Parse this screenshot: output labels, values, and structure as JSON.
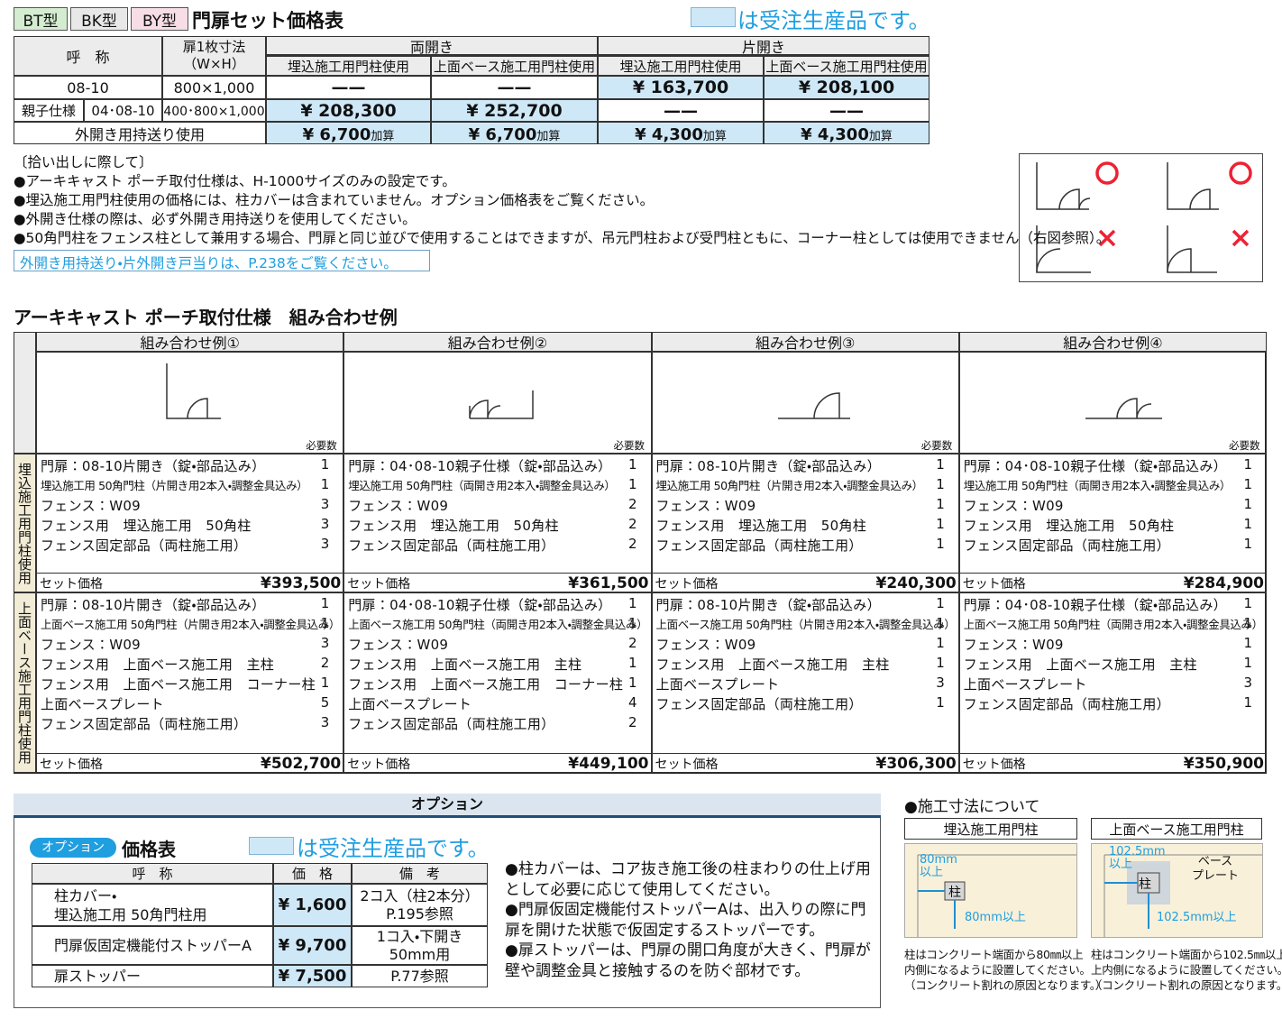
{
  "header": {
    "tags": [
      {
        "text": "BT型",
        "color": "#d4ecd0"
      },
      {
        "text": "BK型",
        "color": "#e8e8e8"
      },
      {
        "text": "BY型",
        "color": "#f6dde6"
      }
    ],
    "title": "門扉セット価格表",
    "legend_note": "は受注生産品です。"
  },
  "price_table": {
    "head_name": "呼　称",
    "head_size": [
      "扉1枚寸法",
      "（W×H）"
    ],
    "groups": [
      "両開き",
      "片開き"
    ],
    "subheads": [
      "埋込施工用門柱使用",
      "上面ベース施工用門柱使用",
      "埋込施工用門柱使用",
      "上面ベース施工用門柱使用"
    ],
    "row1": {
      "name": "08-10",
      "size": "800×1,000",
      "cells": [
        {
          "text": "——",
          "shaded": false
        },
        {
          "text": "——",
          "shaded": false
        },
        {
          "text": "¥ 163,700",
          "shaded": true
        },
        {
          "text": "¥ 208,100",
          "shaded": true
        }
      ]
    },
    "row2": {
      "name": "親子仕様",
      "code": "04･08-10",
      "size": "400･800×1,000",
      "cells": [
        {
          "text": "¥ 208,300",
          "shaded": true
        },
        {
          "text": "¥ 252,700",
          "shaded": true
        },
        {
          "text": "——",
          "shaded": false
        },
        {
          "text": "——",
          "shaded": false
        }
      ]
    },
    "row3": {
      "name": "外開き用持送り使用",
      "cells": [
        {
          "price": "¥ 6,700",
          "suffix": "加算",
          "shaded": true
        },
        {
          "price": "¥ 6,700",
          "suffix": "加算",
          "shaded": true
        },
        {
          "price": "¥ 4,300",
          "suffix": "加算",
          "shaded": true
        },
        {
          "price": "¥ 4,300",
          "suffix": "加算",
          "shaded": true
        }
      ]
    }
  },
  "notes": {
    "heading": "〔拾い出しに際して〕",
    "bullets": [
      "●アーキキャスト ポーチ取付仕様は、H-1000サイズのみの設定です。",
      "●埋込施工用門柱使用の価格には、柱カバーは含まれていません。オプション価格表をご覧ください。",
      "●外開き仕様の際は、必ず外開き用持送りを使用してください。",
      "●50角門柱をフェンス柱として兼用する場合、門扉と同じ並びで使用することはできますが、吊元門柱および受門柱ともに、コーナー柱としては使用できません（右図参照）。"
    ],
    "box": "外開き用持送り・片外開き戸当りは、P.238をご覧ください。"
  },
  "combo": {
    "title": "アーキキャスト ポーチ取付仕様　組み合わせ例",
    "required_label": "必要数",
    "set_label": "セット価格",
    "groups": [
      "埋込施工用門柱使用",
      "上面ベース施工用門柱使用"
    ],
    "examples": [
      {
        "title": "組み合わせ例①",
        "g1": {
          "items": [
            {
              "name": "門扉：08-10片開き（錠・部品込み）",
              "qty": 1
            },
            {
              "name": "埋込施工用 50角門柱（片開き用2本入・調整金具込み）",
              "qty": 1
            },
            {
              "name": "フェンス：W09",
              "qty": 3
            },
            {
              "name": "フェンス用　埋込施工用　50角柱",
              "qty": 3
            },
            {
              "name": "フェンス固定部品（両柱施工用）",
              "qty": 3
            }
          ],
          "price": "¥393,500"
        },
        "g2": {
          "items": [
            {
              "name": "門扉：08-10片開き（錠・部品込み）",
              "qty": 1
            },
            {
              "name": "上面ベース施工用 50角門柱（片開き用2本入・調整金具込み）",
              "qty": 1
            },
            {
              "name": "フェンス：W09",
              "qty": 3
            },
            {
              "name": "フェンス用　上面ベース施工用　主柱",
              "qty": 2
            },
            {
              "name": "フェンス用　上面ベース施工用　コーナー柱",
              "qty": 1
            },
            {
              "name": "上面ベースプレート",
              "qty": 5
            },
            {
              "name": "フェンス固定部品（両柱施工用）",
              "qty": 3
            }
          ],
          "price": "¥502,700"
        }
      },
      {
        "title": "組み合わせ例②",
        "g1": {
          "items": [
            {
              "name": "門扉：04･08-10親子仕様（錠・部品込み）",
              "qty": 1
            },
            {
              "name": "埋込施工用 50角門柱（両開き用2本入・調整金具込み）",
              "qty": 1
            },
            {
              "name": "フェンス：W09",
              "qty": 2
            },
            {
              "name": "フェンス用　埋込施工用　50角柱",
              "qty": 2
            },
            {
              "name": "フェンス固定部品（両柱施工用）",
              "qty": 2
            }
          ],
          "price": "¥361,500"
        },
        "g2": {
          "items": [
            {
              "name": "門扉：04･08-10親子仕様（錠・部品込み）",
              "qty": 1
            },
            {
              "name": "上面ベース施工用 50角門柱（両開き用2本入・調整金具込み）",
              "qty": 1
            },
            {
              "name": "フェンス：W09",
              "qty": 2
            },
            {
              "name": "フェンス用　上面ベース施工用　主柱",
              "qty": 1
            },
            {
              "name": "フェンス用　上面ベース施工用　コーナー柱",
              "qty": 1
            },
            {
              "name": "上面ベースプレート",
              "qty": 4
            },
            {
              "name": "フェンス固定部品（両柱施工用）",
              "qty": 2
            }
          ],
          "price": "¥449,100"
        }
      },
      {
        "title": "組み合わせ例③",
        "g1": {
          "items": [
            {
              "name": "門扉：08-10片開き（錠・部品込み）",
              "qty": 1
            },
            {
              "name": "埋込施工用 50角門柱（片開き用2本入・調整金具込み）",
              "qty": 1
            },
            {
              "name": "フェンス：W09",
              "qty": 1
            },
            {
              "name": "フェンス用　埋込施工用　50角柱",
              "qty": 1
            },
            {
              "name": "フェンス固定部品（両柱施工用）",
              "qty": 1
            }
          ],
          "price": "¥240,300"
        },
        "g2": {
          "items": [
            {
              "name": "門扉：08-10片開き（錠・部品込み）",
              "qty": 1
            },
            {
              "name": "上面ベース施工用 50角門柱（片開き用2本入・調整金具込み）",
              "qty": 1
            },
            {
              "name": "フェンス：W09",
              "qty": 1
            },
            {
              "name": "フェンス用　上面ベース施工用　主柱",
              "qty": 1
            },
            {
              "name": "上面ベースプレート",
              "qty": 3
            },
            {
              "name": "フェンス固定部品（両柱施工用）",
              "qty": 1
            }
          ],
          "price": "¥306,300"
        }
      },
      {
        "title": "組み合わせ例④",
        "g1": {
          "items": [
            {
              "name": "門扉：04･08-10親子仕様（錠・部品込み）",
              "qty": 1
            },
            {
              "name": "埋込施工用 50角門柱（両開き用2本入・調整金具込み）",
              "qty": 1
            },
            {
              "name": "フェンス：W09",
              "qty": 1
            },
            {
              "name": "フェンス用　埋込施工用　50角柱",
              "qty": 1
            },
            {
              "name": "フェンス固定部品（両柱施工用）",
              "qty": 1
            }
          ],
          "price": "¥284,900"
        },
        "g2": {
          "items": [
            {
              "name": "門扉：04･08-10親子仕様（錠・部品込み）",
              "qty": 1
            },
            {
              "name": "上面ベース施工用 50角門柱（両開き用2本入・調整金具込み）",
              "qty": 1
            },
            {
              "name": "フェンス：W09",
              "qty": 1
            },
            {
              "name": "フェンス用　上面ベース施工用　主柱",
              "qty": 1
            },
            {
              "name": "上面ベースプレート",
              "qty": 3
            },
            {
              "name": "フェンス固定部品（両柱施工用）",
              "qty": 1
            }
          ],
          "price": "¥350,900"
        }
      }
    ]
  },
  "options": {
    "band": "オプション",
    "badge": "オプション",
    "title": "価格表",
    "legend_note": "は受注生産品です。",
    "headers": [
      "呼　称",
      "価　格",
      "備　考"
    ],
    "rows": [
      {
        "name": [
          "柱カバー・",
          "埋込施工用 50角門柱用"
        ],
        "price": "¥ 1,600",
        "note": [
          "2コ入（柱2本分）",
          "P.195参照"
        ]
      },
      {
        "name": [
          "門扉仮固定機能付ストッパーA"
        ],
        "price": "¥ 9,700",
        "note": [
          "1コ入・下開き",
          "50mm用"
        ]
      },
      {
        "name": [
          "扉ストッパー"
        ],
        "price": "¥ 7,500",
        "note": [
          "P.77参照"
        ]
      }
    ],
    "bullets": [
      "●柱カバーは、コア抜き施工後の柱まわりの仕上げ用として必要に応じて使用してください。",
      "●門扉仮固定機能付ストッパーAは、出入りの際に門扉を開けた状態で仮固定するストッパーです。",
      "●扉ストッパーは、門扉の開口角度が大きく、門扉が壁や調整金具と接触するのを防ぐ部材です。"
    ]
  },
  "construction": {
    "title": "●施工寸法について",
    "left": {
      "title": "埋込施工用門柱",
      "top_label": [
        "80mm",
        "以上"
      ],
      "post": "柱",
      "bottom_label": "80mm以上",
      "caption": [
        "柱はコンクリート端面から80㎜以上",
        "内側になるように設置してください。",
        "（コンクリート割れの原因となります。）"
      ]
    },
    "right": {
      "title": "上面ベース施工用門柱",
      "top_label": [
        "102.5mm",
        "以上"
      ],
      "plate_label": [
        "ベース",
        "プレート"
      ],
      "post": "柱",
      "bottom_label": "102.5mm以上",
      "caption": [
        "柱はコンクリート端面から102.5㎜以上",
        "上内側になるように設置してください。",
        "（コンクリート割れの原因となります。）"
      ]
    }
  }
}
